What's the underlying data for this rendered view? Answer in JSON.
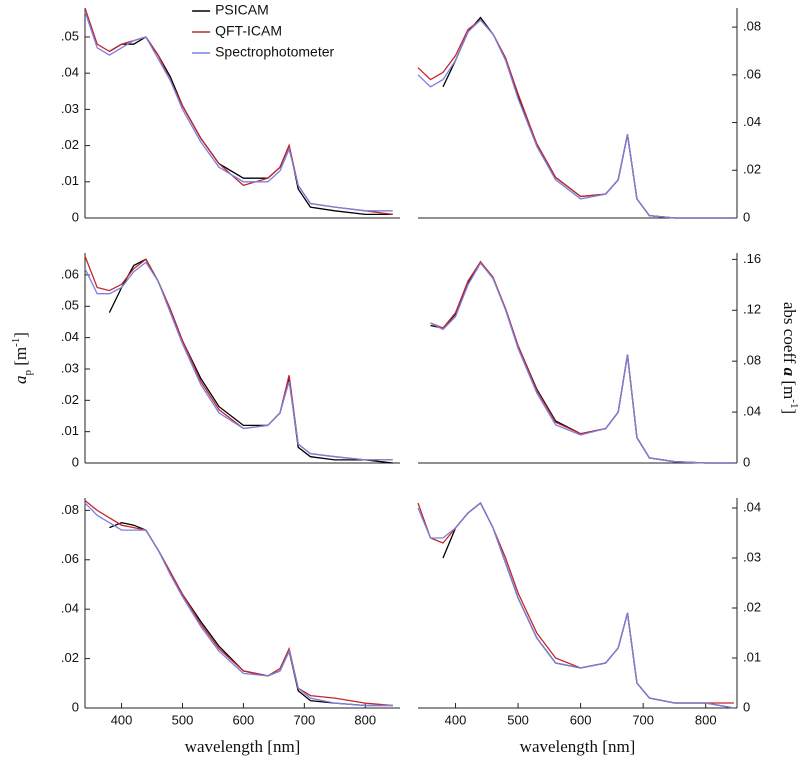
{
  "chart_data": [
    {
      "type": "line",
      "yaxis": "left",
      "legend": "upper center",
      "x": [
        340,
        360,
        380,
        400,
        420,
        440,
        460,
        480,
        500,
        530,
        560,
        600,
        640,
        660,
        675,
        690,
        710,
        750,
        800,
        845
      ],
      "xlim": [
        340,
        857
      ],
      "ylim": [
        0,
        0.058
      ],
      "yticks": [
        0,
        {
          "value": 0.01,
          "label": ".01"
        },
        {
          "value": 0.02,
          "label": ".02"
        },
        {
          "value": 0.03,
          "label": ".03"
        },
        {
          "value": 0.04,
          "label": ".04"
        },
        {
          "value": 0.05,
          "label": ".05"
        }
      ],
      "series": [
        {
          "name": "PSICAM",
          "color": "#000000",
          "values": [
            null,
            null,
            0.046,
            0.048,
            0.048,
            0.05,
            0.045,
            0.039,
            0.031,
            0.022,
            0.015,
            0.011,
            0.011,
            0.014,
            0.02,
            0.008,
            0.003,
            0.002,
            0.001,
            0.001
          ]
        },
        {
          "name": "QFT-ICAM",
          "color": "#c4262c",
          "values": [
            0.058,
            0.048,
            0.046,
            0.048,
            0.049,
            0.05,
            0.045,
            0.038,
            0.031,
            0.022,
            0.015,
            0.009,
            0.011,
            0.014,
            0.02,
            0.009,
            0.004,
            0.003,
            0.002,
            0.001
          ]
        },
        {
          "name": "Spectrophotometer",
          "color": "#7b80e0",
          "values": [
            0.057,
            0.047,
            0.045,
            0.047,
            0.049,
            0.05,
            0.044,
            0.038,
            0.03,
            0.021,
            0.014,
            0.01,
            0.01,
            0.013,
            0.019,
            0.009,
            0.004,
            0.003,
            0.002,
            0.002
          ]
        }
      ]
    },
    {
      "type": "line",
      "yaxis": "right",
      "x": [
        340,
        360,
        380,
        400,
        420,
        440,
        460,
        480,
        500,
        530,
        560,
        600,
        640,
        660,
        675,
        690,
        710,
        750,
        800,
        845
      ],
      "xlim": [
        340,
        850
      ],
      "ylim": [
        0,
        0.088
      ],
      "yticks": [
        0,
        {
          "value": 0.02,
          "label": ".02"
        },
        {
          "value": 0.04,
          "label": ".04"
        },
        {
          "value": 0.06,
          "label": ".06"
        },
        {
          "value": 0.08,
          "label": ".08"
        }
      ],
      "series": [
        {
          "name": "PSICAM",
          "color": "#000000",
          "values": [
            null,
            null,
            0.055,
            0.066,
            0.078,
            0.084,
            0.077,
            0.067,
            0.051,
            0.031,
            0.017,
            0.009,
            0.01,
            0.016,
            0.035,
            0.008,
            0.001,
            0,
            0,
            0
          ]
        },
        {
          "name": "QFT-ICAM",
          "color": "#c4262c",
          "values": [
            0.063,
            0.058,
            0.061,
            0.068,
            0.079,
            0.083,
            0.077,
            0.067,
            0.052,
            0.031,
            0.017,
            0.009,
            0.01,
            0.016,
            0.035,
            0.008,
            0.001,
            0,
            0,
            0
          ]
        },
        {
          "name": "Spectrophotometer",
          "color": "#7b80e0",
          "values": [
            0.06,
            0.055,
            0.058,
            0.066,
            0.078,
            0.083,
            0.077,
            0.066,
            0.05,
            0.03,
            0.016,
            0.008,
            0.01,
            0.016,
            0.035,
            0.008,
            0.001,
            0,
            0,
            0
          ]
        }
      ]
    },
    {
      "type": "line",
      "yaxis": "left",
      "ylabel": [
        "a",
        "p",
        " [m",
        "-1",
        "]"
      ],
      "x": [
        340,
        360,
        380,
        400,
        420,
        440,
        460,
        480,
        500,
        530,
        560,
        600,
        640,
        660,
        675,
        690,
        710,
        750,
        800,
        845
      ],
      "xlim": [
        340,
        857
      ],
      "ylim": [
        0,
        0.067
      ],
      "yticks": [
        0,
        {
          "value": 0.01,
          "label": ".01"
        },
        {
          "value": 0.02,
          "label": ".02"
        },
        {
          "value": 0.03,
          "label": ".03"
        },
        {
          "value": 0.04,
          "label": ".04"
        },
        {
          "value": 0.05,
          "label": ".05"
        },
        {
          "value": 0.06,
          "label": ".06"
        }
      ],
      "series": [
        {
          "name": "PSICAM",
          "color": "#000000",
          "values": [
            null,
            null,
            0.048,
            0.056,
            0.063,
            0.065,
            0.058,
            0.049,
            0.039,
            0.027,
            0.018,
            0.012,
            0.012,
            0.016,
            0.027,
            0.005,
            0.002,
            0.001,
            0.001,
            0
          ]
        },
        {
          "name": "QFT-ICAM",
          "color": "#c4262c",
          "values": [
            0.066,
            0.056,
            0.055,
            0.057,
            0.062,
            0.065,
            0.058,
            0.049,
            0.039,
            0.026,
            0.017,
            0.011,
            0.012,
            0.016,
            0.028,
            0.006,
            0.003,
            0.002,
            0.001,
            0.001
          ]
        },
        {
          "name": "Spectrophotometer",
          "color": "#7b80e0",
          "values": [
            0.062,
            0.054,
            0.054,
            0.056,
            0.061,
            0.064,
            0.058,
            0.048,
            0.038,
            0.025,
            0.016,
            0.011,
            0.012,
            0.016,
            0.026,
            0.006,
            0.003,
            0.002,
            0.001,
            0.001
          ]
        }
      ]
    },
    {
      "type": "line",
      "yaxis": "right",
      "ylabel": [
        "abs coeff ",
        "a",
        " [m",
        "-1",
        "]"
      ],
      "x": [
        340,
        360,
        380,
        400,
        420,
        440,
        460,
        480,
        500,
        530,
        560,
        600,
        640,
        660,
        675,
        690,
        710,
        750,
        800,
        845
      ],
      "xlim": [
        340,
        850
      ],
      "ylim": [
        0,
        0.165
      ],
      "yticks": [
        0,
        {
          "value": 0.04,
          "label": ".04"
        },
        {
          "value": 0.08,
          "label": ".08"
        },
        {
          "value": 0.12,
          "label": ".12"
        },
        {
          "value": 0.16,
          "label": ".16"
        }
      ],
      "series": [
        {
          "name": "PSICAM",
          "color": "#000000",
          "values": [
            null,
            0.108,
            0.106,
            0.117,
            0.142,
            0.158,
            0.145,
            0.121,
            0.092,
            0.058,
            0.033,
            0.023,
            0.027,
            0.04,
            0.085,
            0.02,
            0.004,
            0.001,
            0,
            0
          ]
        },
        {
          "name": "QFT-ICAM",
          "color": "#c4262c",
          "values": [
            null,
            0.11,
            0.106,
            0.118,
            0.143,
            0.158,
            0.146,
            0.121,
            0.092,
            0.057,
            0.032,
            0.023,
            0.027,
            0.04,
            0.085,
            0.02,
            0.004,
            0.001,
            0,
            0
          ]
        },
        {
          "name": "Spectrophotometer",
          "color": "#7b80e0",
          "values": [
            null,
            0.11,
            0.105,
            0.115,
            0.14,
            0.157,
            0.145,
            0.12,
            0.09,
            0.055,
            0.03,
            0.022,
            0.027,
            0.04,
            0.085,
            0.02,
            0.004,
            0.001,
            0,
            0
          ]
        }
      ]
    },
    {
      "type": "line",
      "yaxis": "left",
      "xlabel": "wavelength [nm]",
      "x": [
        340,
        360,
        380,
        400,
        420,
        440,
        460,
        480,
        500,
        530,
        560,
        600,
        640,
        660,
        675,
        690,
        710,
        750,
        800,
        845
      ],
      "xlim": [
        340,
        857
      ],
      "ylim": [
        0,
        0.085
      ],
      "xticks": [
        400,
        500,
        600,
        700,
        800
      ],
      "yticks": [
        0,
        {
          "value": 0.02,
          "label": ".02"
        },
        {
          "value": 0.04,
          "label": ".04"
        },
        {
          "value": 0.06,
          "label": ".06"
        },
        {
          "value": 0.08,
          "label": ".08"
        }
      ],
      "series": [
        {
          "name": "PSICAM",
          "color": "#000000",
          "values": [
            null,
            null,
            0.073,
            0.075,
            0.074,
            0.072,
            0.064,
            0.055,
            0.046,
            0.035,
            0.025,
            0.015,
            0.013,
            0.015,
            0.023,
            0.007,
            0.003,
            0.002,
            0.001,
            0.001
          ]
        },
        {
          "name": "QFT-ICAM",
          "color": "#c4262c",
          "values": [
            0.084,
            0.08,
            0.077,
            0.074,
            0.073,
            0.072,
            0.064,
            0.055,
            0.046,
            0.034,
            0.024,
            0.015,
            0.013,
            0.016,
            0.024,
            0.008,
            0.005,
            0.004,
            0.002,
            0.001
          ]
        },
        {
          "name": "Spectrophotometer",
          "color": "#7b80e0",
          "values": [
            0.083,
            0.078,
            0.075,
            0.072,
            0.072,
            0.072,
            0.064,
            0.054,
            0.045,
            0.033,
            0.023,
            0.014,
            0.013,
            0.015,
            0.023,
            0.008,
            0.004,
            0.002,
            0.001,
            0.001
          ]
        }
      ]
    },
    {
      "type": "line",
      "yaxis": "right",
      "xlabel": "wavelength [nm]",
      "x": [
        340,
        360,
        380,
        400,
        420,
        440,
        460,
        480,
        500,
        530,
        560,
        600,
        640,
        660,
        675,
        690,
        710,
        750,
        800,
        845
      ],
      "xlim": [
        340,
        850
      ],
      "ylim": [
        0,
        0.042
      ],
      "xticks": [
        400,
        500,
        600,
        700,
        800
      ],
      "yticks": [
        0,
        {
          "value": 0.01,
          "label": ".01"
        },
        {
          "value": 0.02,
          "label": ".02"
        },
        {
          "value": 0.03,
          "label": ".03"
        },
        {
          "value": 0.04,
          "label": ".04"
        }
      ],
      "series": [
        {
          "name": "PSICAM",
          "color": "#000000",
          "values": [
            null,
            null,
            0.03,
            0.036,
            0.039,
            0.041,
            0.036,
            0.029,
            0.022,
            0.014,
            0.009,
            0.008,
            0.009,
            0.012,
            0.019,
            0.005,
            0.002,
            0.001,
            0.001,
            0
          ]
        },
        {
          "name": "QFT-ICAM",
          "color": "#c4262c",
          "values": [
            0.041,
            0.034,
            0.033,
            0.036,
            0.039,
            0.041,
            0.036,
            0.03,
            0.023,
            0.015,
            0.01,
            0.008,
            0.009,
            0.012,
            0.019,
            0.005,
            0.002,
            0.001,
            0.001,
            0.001
          ]
        },
        {
          "name": "Spectrophotometer",
          "color": "#7b80e0",
          "values": [
            0.04,
            0.034,
            0.034,
            0.036,
            0.039,
            0.041,
            0.036,
            0.029,
            0.022,
            0.014,
            0.009,
            0.008,
            0.009,
            0.012,
            0.019,
            0.005,
            0.002,
            0.001,
            0.001,
            0
          ]
        }
      ]
    }
  ]
}
